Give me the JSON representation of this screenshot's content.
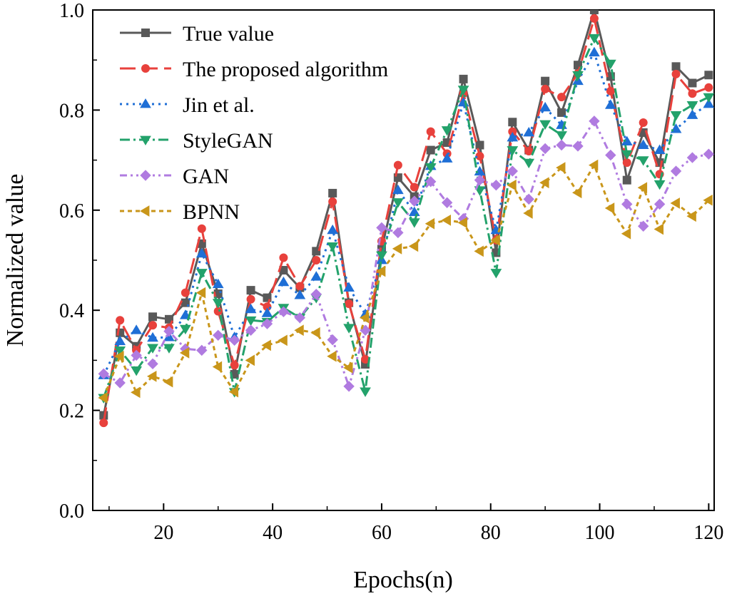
{
  "chart_data": {
    "type": "line",
    "title": "",
    "xlabel": "Epochs(n)",
    "ylabel": "Normalized value",
    "xlim": [
      7,
      121
    ],
    "ylim": [
      0.0,
      1.0
    ],
    "xticks": [
      20,
      40,
      60,
      80,
      100,
      120
    ],
    "yticks": [
      0.0,
      0.2,
      0.4,
      0.6,
      0.8,
      1.0
    ],
    "xtick_labels": [
      "20",
      "40",
      "60",
      "80",
      "100",
      "120"
    ],
    "ytick_labels": [
      "0.0",
      "0.2",
      "0.4",
      "0.6",
      "0.8",
      "1.0"
    ],
    "grid": false,
    "legend_position": "top-left",
    "x": [
      9,
      12,
      15,
      18,
      21,
      24,
      27,
      30,
      33,
      36,
      39,
      42,
      45,
      48,
      51,
      54,
      57,
      60,
      63,
      66,
      69,
      72,
      75,
      78,
      81,
      84,
      87,
      90,
      93,
      96,
      99,
      102,
      105,
      108,
      111,
      114,
      117,
      120
    ],
    "series": [
      {
        "name": "True value",
        "color": "#595959",
        "dash": "",
        "marker": "square",
        "values": [
          0.19,
          0.355,
          0.328,
          0.387,
          0.382,
          0.415,
          0.533,
          0.433,
          0.272,
          0.44,
          0.425,
          0.48,
          0.445,
          0.518,
          0.634,
          0.415,
          0.292,
          0.522,
          0.665,
          0.627,
          0.72,
          0.735,
          0.862,
          0.73,
          0.515,
          0.776,
          0.72,
          0.858,
          0.795,
          0.89,
          1.0,
          0.867,
          0.66,
          0.755,
          0.695,
          0.887,
          0.854,
          0.87
        ]
      },
      {
        "name": "The proposed algorithm",
        "color": "#e8413c",
        "dash": "22,9",
        "marker": "circle",
        "values": [
          0.175,
          0.38,
          0.32,
          0.37,
          0.365,
          0.435,
          0.563,
          0.398,
          0.29,
          0.422,
          0.407,
          0.505,
          0.448,
          0.5,
          0.617,
          0.413,
          0.302,
          0.538,
          0.69,
          0.646,
          0.757,
          0.713,
          0.833,
          0.708,
          0.54,
          0.757,
          0.718,
          0.842,
          0.826,
          0.873,
          0.983,
          0.838,
          0.695,
          0.775,
          0.672,
          0.872,
          0.833,
          0.845
        ]
      },
      {
        "name": "Jin et al.",
        "color": "#1f6fd6",
        "dash": "3,6",
        "marker": "triangle-up",
        "values": [
          0.27,
          0.338,
          0.36,
          0.345,
          0.346,
          0.39,
          0.513,
          0.452,
          0.346,
          0.402,
          0.394,
          0.456,
          0.43,
          0.467,
          0.56,
          0.445,
          0.392,
          0.5,
          0.64,
          0.596,
          0.688,
          0.703,
          0.815,
          0.677,
          0.56,
          0.745,
          0.755,
          0.805,
          0.77,
          0.858,
          0.915,
          0.81,
          0.737,
          0.73,
          0.72,
          0.762,
          0.79,
          0.812
        ]
      },
      {
        "name": "StyleGAN",
        "color": "#23a26b",
        "dash": "14,5,3,5",
        "marker": "triangle-down",
        "values": [
          0.225,
          0.32,
          0.28,
          0.325,
          0.325,
          0.363,
          0.475,
          0.415,
          0.237,
          0.38,
          0.377,
          0.405,
          0.385,
          0.425,
          0.528,
          0.365,
          0.238,
          0.51,
          0.616,
          0.576,
          0.686,
          0.76,
          0.841,
          0.64,
          0.475,
          0.72,
          0.695,
          0.772,
          0.75,
          0.87,
          0.944,
          0.893,
          0.712,
          0.7,
          0.652,
          0.79,
          0.81,
          0.826
        ]
      },
      {
        "name": "GAN",
        "color": "#b07be0",
        "dash": "10,5,3,5,3,5",
        "marker": "diamond",
        "values": [
          0.273,
          0.255,
          0.31,
          0.293,
          0.358,
          0.323,
          0.32,
          0.35,
          0.34,
          0.36,
          0.373,
          0.397,
          0.385,
          0.432,
          0.341,
          0.248,
          0.36,
          0.565,
          0.555,
          0.618,
          0.657,
          0.615,
          0.583,
          0.66,
          0.65,
          0.678,
          0.622,
          0.723,
          0.73,
          0.728,
          0.778,
          0.71,
          0.612,
          0.568,
          0.612,
          0.678,
          0.705,
          0.712
        ]
      },
      {
        "name": "BPNN",
        "color": "#c9961a",
        "dash": "6,5",
        "marker": "triangle-left",
        "values": [
          0.225,
          0.308,
          0.236,
          0.268,
          0.257,
          0.315,
          0.435,
          0.287,
          0.237,
          0.3,
          0.33,
          0.34,
          0.36,
          0.355,
          0.308,
          0.285,
          0.385,
          0.478,
          0.523,
          0.528,
          0.573,
          0.58,
          0.575,
          0.518,
          0.54,
          0.65,
          0.594,
          0.655,
          0.685,
          0.635,
          0.69,
          0.604,
          0.553,
          0.645,
          0.562,
          0.614,
          0.588,
          0.62
        ]
      }
    ]
  }
}
